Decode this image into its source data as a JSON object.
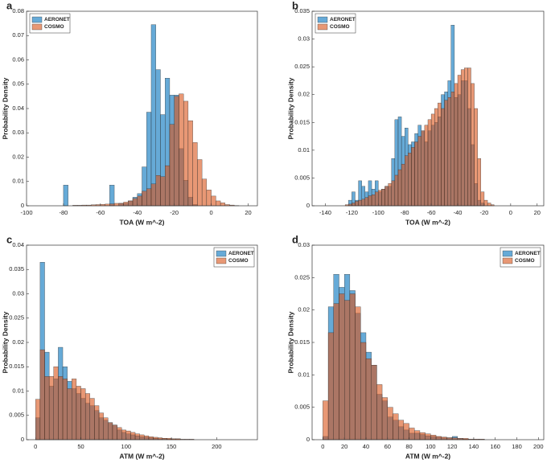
{
  "chart_data": [
    {
      "type": "histogram",
      "label": "a",
      "xlabel": "TOA (W m^-2)",
      "ylabel": "Probability Density",
      "legend": "upper left",
      "bins": [
        -100,
        -97.5,
        -95,
        -92.5,
        -90,
        -87.5,
        -85,
        -82.5,
        -80,
        -77.5,
        -75,
        -72.5,
        -70,
        -67.5,
        -65,
        -62.5,
        -60,
        -57.5,
        -55,
        -52.5,
        -50,
        -47.5,
        -45,
        -42.5,
        -40,
        -37.5,
        -35,
        -32.5,
        -30,
        -27.5,
        -25,
        -22.5,
        -20,
        -17.5,
        -15,
        -12.5,
        -10,
        -7.5,
        -5,
        -2.5,
        0,
        2.5,
        5,
        7.5,
        10,
        12.5,
        15,
        17.5,
        20
      ],
      "series": [
        {
          "name": "AERONET",
          "color": "#0072bd",
          "values": [
            0,
            0,
            0,
            0,
            0,
            0,
            0,
            0,
            0.0085,
            0,
            0,
            0,
            0,
            0,
            0,
            0,
            0,
            0,
            0.0085,
            0,
            0.001,
            0.001,
            0.002,
            0.0035,
            0.005,
            0.016,
            0.0385,
            0.0745,
            0.056,
            0.0375,
            0.0525,
            0.0455,
            0.0455,
            0.0235,
            0.0105,
            0.0035,
            0.0005,
            0,
            0,
            0,
            0,
            0,
            0,
            0,
            0,
            0,
            0,
            0
          ]
        },
        {
          "name": "COSMO",
          "color": "#d95319",
          "values": [
            0,
            0,
            0,
            0,
            0,
            0,
            0,
            0,
            0,
            0,
            0.0002,
            0.0002,
            0.0003,
            0.0003,
            0.0004,
            0.0005,
            0.0006,
            0.0007,
            0.0008,
            0.001,
            0.001,
            0.0015,
            0.002,
            0.003,
            0.004,
            0.006,
            0.007,
            0.009,
            0.0125,
            0.012,
            0.0165,
            0.0335,
            0.045,
            0.046,
            0.043,
            0.035,
            0.026,
            0.019,
            0.011,
            0.0065,
            0.004,
            0.002,
            0.0012,
            0.0005,
            0.0003,
            0.0001,
            0,
            0
          ]
        }
      ],
      "xlim": [
        -100,
        25
      ],
      "xticks": [
        -100,
        -80,
        -60,
        -40,
        -20,
        0,
        20
      ],
      "ylim": [
        0,
        0.08
      ],
      "yticks": [
        0,
        0.01,
        0.02,
        0.03,
        0.04,
        0.05,
        0.06,
        0.07,
        0.08
      ]
    },
    {
      "type": "histogram",
      "label": "b",
      "xlabel": "TOA (W m^-2)",
      "ylabel": "Probability Density",
      "legend": "upper left",
      "bins": [
        -130,
        -127.5,
        -125,
        -122.5,
        -120,
        -117.5,
        -115,
        -112.5,
        -110,
        -107.5,
        -105,
        -102.5,
        -100,
        -97.5,
        -95,
        -92.5,
        -90,
        -87.5,
        -85,
        -82.5,
        -80,
        -77.5,
        -75,
        -72.5,
        -70,
        -67.5,
        -65,
        -62.5,
        -60,
        -57.5,
        -55,
        -52.5,
        -50,
        -47.5,
        -45,
        -42.5,
        -40,
        -37.5,
        -35,
        -32.5,
        -30,
        -27.5,
        -25,
        -22.5,
        -20,
        -17.5,
        -15,
        -12.5,
        -10
      ],
      "series": [
        {
          "name": "AERONET",
          "color": "#0072bd",
          "values": [
            0,
            0,
            0,
            0.001,
            0.0025,
            0.001,
            0.0045,
            0.0035,
            0.0025,
            0.0045,
            0.003,
            0.0045,
            0.0025,
            0.003,
            0.0035,
            0.0035,
            0.0085,
            0.0155,
            0.016,
            0.0125,
            0.014,
            0.011,
            0.0115,
            0.013,
            0.0145,
            0.0135,
            0.0115,
            0.0135,
            0.0145,
            0.015,
            0.016,
            0.02,
            0.0205,
            0.0225,
            0.0325,
            0.0195,
            0.02,
            0.0225,
            0.0225,
            0.0175,
            0.011,
            0.004,
            0.001,
            0.0005,
            0,
            0,
            0,
            0
          ]
        },
        {
          "name": "COSMO",
          "color": "#d95319",
          "values": [
            0,
            0,
            0.0002,
            0.0003,
            0.0005,
            0.0008,
            0.001,
            0.0012,
            0.0015,
            0.0018,
            0.002,
            0.0025,
            0.0028,
            0.003,
            0.0035,
            0.004,
            0.0045,
            0.0055,
            0.0065,
            0.0075,
            0.009,
            0.0095,
            0.0105,
            0.0115,
            0.0125,
            0.0135,
            0.0145,
            0.0155,
            0.0165,
            0.0175,
            0.0185,
            0.0175,
            0.019,
            0.0195,
            0.0205,
            0.022,
            0.0235,
            0.0245,
            0.0248,
            0.0248,
            0.022,
            0.0175,
            0.0085,
            0.0025,
            0.001,
            0.0005,
            0.0002,
            0
          ]
        }
      ],
      "xlim": [
        -150,
        25
      ],
      "xticks": [
        -140,
        -120,
        -100,
        -80,
        -60,
        -40,
        -20,
        0,
        20
      ],
      "ylim": [
        0,
        0.035
      ],
      "yticks": [
        0,
        0.005,
        0.01,
        0.015,
        0.02,
        0.025,
        0.03,
        0.035
      ]
    },
    {
      "type": "histogram",
      "label": "c",
      "xlabel": "ATM (W m^-2)",
      "ylabel": "Probability Density",
      "legend": "upper right",
      "bins": [
        0,
        5,
        10,
        15,
        20,
        25,
        30,
        35,
        40,
        45,
        50,
        55,
        60,
        65,
        70,
        75,
        80,
        85,
        90,
        95,
        100,
        105,
        110,
        115,
        120,
        125,
        130,
        135,
        140,
        145,
        150,
        155,
        160,
        165,
        170,
        175,
        180,
        185,
        190,
        195,
        200,
        205,
        210,
        215,
        220,
        225,
        230
      ],
      "series": [
        {
          "name": "AERONET",
          "color": "#0072bd",
          "values": [
            0.0045,
            0.0365,
            0.018,
            0.011,
            0.0125,
            0.019,
            0.015,
            0.012,
            0.0105,
            0.0095,
            0.0085,
            0.0075,
            0.007,
            0.006,
            0.0045,
            0.004,
            0.0035,
            0.003,
            0.002,
            0.0015,
            0.0012,
            0.001,
            0.0008,
            0.0006,
            0.0005,
            0.0004,
            0.0003,
            0.0002,
            0.0002,
            0.0001,
            0.0001,
            0.0001,
            0,
            0,
            0,
            0,
            0,
            0,
            0,
            0,
            0,
            0,
            0,
            0,
            0,
            0
          ]
        },
        {
          "name": "COSMO",
          "color": "#d95319",
          "values": [
            0.0083,
            0.0185,
            0.013,
            0.013,
            0.015,
            0.013,
            0.0125,
            0.0105,
            0.0125,
            0.011,
            0.0105,
            0.0095,
            0.0085,
            0.007,
            0.0055,
            0.0045,
            0.0035,
            0.003,
            0.0025,
            0.002,
            0.0018,
            0.0015,
            0.0012,
            0.001,
            0.0008,
            0.0006,
            0.0005,
            0.0004,
            0.0003,
            0.0003,
            0.0002,
            0.0002,
            0.0001,
            0.0001,
            0.0001,
            0,
            0,
            0,
            0,
            0,
            0,
            0,
            0,
            0,
            0,
            0
          ]
        }
      ],
      "xlim": [
        -10,
        245
      ],
      "xticks": [
        0,
        50,
        100,
        150,
        200
      ],
      "ylim": [
        0,
        0.04
      ],
      "yticks": [
        0,
        0.005,
        0.01,
        0.015,
        0.02,
        0.025,
        0.03,
        0.035,
        0.04
      ]
    },
    {
      "type": "histogram",
      "label": "d",
      "xlabel": "ATM (W m^-2)",
      "ylabel": "Probability Density",
      "legend": "upper right",
      "bins": [
        0,
        5,
        10,
        15,
        20,
        25,
        30,
        35,
        40,
        45,
        50,
        55,
        60,
        65,
        70,
        75,
        80,
        85,
        90,
        95,
        100,
        105,
        110,
        115,
        120,
        125,
        130,
        135,
        140,
        145,
        150
      ],
      "series": [
        {
          "name": "AERONET",
          "color": "#0072bd",
          "values": [
            0.0005,
            0.0205,
            0.0255,
            0.0235,
            0.0255,
            0.023,
            0.0195,
            0.0165,
            0.0135,
            0.0115,
            0.007,
            0.006,
            0.0035,
            0.003,
            0.002,
            0.0015,
            0.001,
            0.001,
            0.0008,
            0.0006,
            0.0005,
            0.0004,
            0.0003,
            0.0003,
            0.0005,
            0.0002,
            0.0001,
            0,
            0,
            0
          ]
        },
        {
          "name": "COSMO",
          "color": "#d95319",
          "values": [
            0.006,
            0.0165,
            0.021,
            0.0225,
            0.0215,
            0.0225,
            0.0205,
            0.015,
            0.0125,
            0.0115,
            0.0085,
            0.0065,
            0.005,
            0.004,
            0.003,
            0.0025,
            0.0018,
            0.0014,
            0.0011,
            0.0009,
            0.0007,
            0.0005,
            0.0004,
            0.0003,
            0.0003,
            0.0002,
            0.0002,
            0.0001,
            0.0001,
            0.0001
          ]
        }
      ],
      "xlim": [
        -10,
        205
      ],
      "xticks": [
        0,
        20,
        40,
        60,
        80,
        100,
        120,
        140,
        160,
        180,
        200
      ],
      "ylim": [
        0,
        0.03
      ],
      "yticks": [
        0,
        0.005,
        0.01,
        0.015,
        0.02,
        0.025,
        0.03
      ]
    }
  ]
}
